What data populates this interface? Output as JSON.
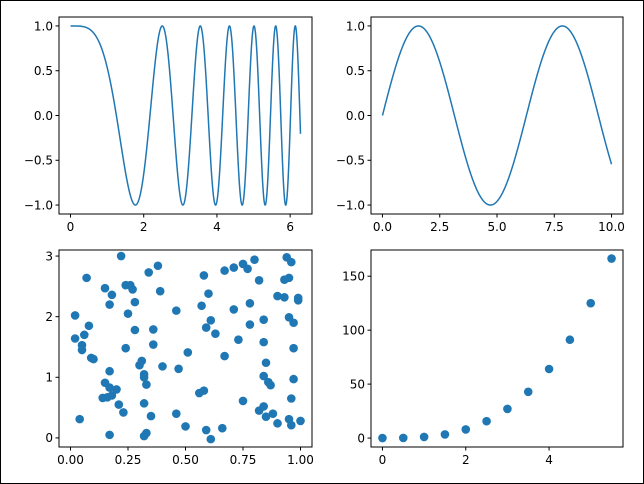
{
  "chart_data": [
    {
      "type": "line",
      "function": "cos(x^2)",
      "x_range": [
        0,
        6.283
      ],
      "xlim": [
        -0.314,
        6.597
      ],
      "ylim": [
        -1.1,
        1.1
      ],
      "xticks": [
        0,
        2,
        4,
        6
      ],
      "xtick_labels": [
        "0",
        "2",
        "4",
        "6"
      ],
      "yticks": [
        -1.0,
        -0.5,
        0.0,
        0.5,
        1.0
      ],
      "ytick_labels": [
        "−1.0",
        "−0.5",
        "0.0",
        "0.5",
        "1.0"
      ],
      "color": "#1f77b4",
      "title": "",
      "xlabel": "",
      "ylabel": ""
    },
    {
      "type": "line",
      "function": "sin(x)",
      "x_range": [
        0,
        10
      ],
      "xlim": [
        -0.5,
        10.5
      ],
      "ylim": [
        -1.1,
        1.1
      ],
      "xticks": [
        0,
        2.5,
        5,
        7.5,
        10
      ],
      "xtick_labels": [
        "0.0",
        "2.5",
        "5.0",
        "7.5",
        "10.0"
      ],
      "yticks": [
        -1.0,
        -0.5,
        0.0,
        0.5,
        1.0
      ],
      "ytick_labels": [
        "−1.0",
        "−0.5",
        "0.0",
        "0.5",
        "1.0"
      ],
      "color": "#1f77b4",
      "title": "",
      "xlabel": "",
      "ylabel": ""
    },
    {
      "type": "scatter",
      "xlim": [
        -0.05,
        1.05
      ],
      "ylim": [
        -0.15,
        3.1
      ],
      "xticks": [
        0,
        0.25,
        0.5,
        0.75,
        1.0
      ],
      "xtick_labels": [
        "0.00",
        "0.25",
        "0.50",
        "0.75",
        "1.00"
      ],
      "yticks": [
        0,
        1,
        2,
        3
      ],
      "ytick_labels": [
        "0",
        "1",
        "2",
        "3"
      ],
      "color": "#1f77b4",
      "points": [
        [
          0.02,
          2.02
        ],
        [
          0.02,
          1.64
        ],
        [
          0.05,
          1.53
        ],
        [
          0.05,
          1.45
        ],
        [
          0.08,
          1.85
        ],
        [
          0.07,
          2.64
        ],
        [
          0.06,
          1.7
        ],
        [
          0.09,
          1.32
        ],
        [
          0.1,
          1.3
        ],
        [
          0.04,
          0.31
        ],
        [
          0.15,
          2.47
        ],
        [
          0.17,
          2.2
        ],
        [
          0.18,
          2.36
        ],
        [
          0.15,
          0.91
        ],
        [
          0.17,
          0.83
        ],
        [
          0.17,
          1.1
        ],
        [
          0.16,
          0.67
        ],
        [
          0.14,
          0.66
        ],
        [
          0.18,
          0.7
        ],
        [
          0.2,
          0.8
        ],
        [
          0.21,
          0.55
        ],
        [
          0.23,
          0.42
        ],
        [
          0.17,
          0.05
        ],
        [
          0.22,
          3.0
        ],
        [
          0.26,
          2.52
        ],
        [
          0.24,
          2.52
        ],
        [
          0.27,
          2.45
        ],
        [
          0.28,
          2.24
        ],
        [
          0.25,
          2.05
        ],
        [
          0.24,
          1.48
        ],
        [
          0.28,
          1.78
        ],
        [
          0.31,
          1.27
        ],
        [
          0.3,
          1.2
        ],
        [
          0.32,
          1.05
        ],
        [
          0.32,
          1.0
        ],
        [
          0.33,
          0.88
        ],
        [
          0.32,
          0.57
        ],
        [
          0.35,
          0.36
        ],
        [
          0.33,
          0.08
        ],
        [
          0.32,
          0.03
        ],
        [
          0.34,
          2.73
        ],
        [
          0.38,
          2.84
        ],
        [
          0.39,
          2.42
        ],
        [
          0.36,
          1.79
        ],
        [
          0.36,
          1.54
        ],
        [
          0.4,
          1.18
        ],
        [
          0.46,
          2.1
        ],
        [
          0.47,
          1.14
        ],
        [
          0.46,
          0.4
        ],
        [
          0.5,
          0.19
        ],
        [
          0.51,
          1.41
        ],
        [
          0.58,
          2.68
        ],
        [
          0.6,
          2.38
        ],
        [
          0.57,
          2.18
        ],
        [
          0.59,
          1.82
        ],
        [
          0.61,
          1.94
        ],
        [
          0.63,
          1.72
        ],
        [
          0.67,
          1.35
        ],
        [
          0.58,
          0.78
        ],
        [
          0.56,
          0.74
        ],
        [
          0.59,
          0.13
        ],
        [
          0.61,
          -0.02
        ],
        [
          0.66,
          0.16
        ],
        [
          0.67,
          2.76
        ],
        [
          0.71,
          2.81
        ],
        [
          0.71,
          2.12
        ],
        [
          0.73,
          1.62
        ],
        [
          0.75,
          2.87
        ],
        [
          0.77,
          2.79
        ],
        [
          0.78,
          2.22
        ],
        [
          0.8,
          2.94
        ],
        [
          0.82,
          2.6
        ],
        [
          0.78,
          1.87
        ],
        [
          0.84,
          1.95
        ],
        [
          0.84,
          1.58
        ],
        [
          0.85,
          1.24
        ],
        [
          0.84,
          1.02
        ],
        [
          0.86,
          0.92
        ],
        [
          0.87,
          0.87
        ],
        [
          0.75,
          0.61
        ],
        [
          0.82,
          0.45
        ],
        [
          0.84,
          0.52
        ],
        [
          0.85,
          0.35
        ],
        [
          0.88,
          0.4
        ],
        [
          0.9,
          0.24
        ],
        [
          0.9,
          2.34
        ],
        [
          0.94,
          2.98
        ],
        [
          0.96,
          2.9
        ],
        [
          0.95,
          2.64
        ],
        [
          0.93,
          2.61
        ],
        [
          0.93,
          2.32
        ],
        [
          0.95,
          1.99
        ],
        [
          0.97,
          1.9
        ],
        [
          0.99,
          2.27
        ],
        [
          0.99,
          2.31
        ],
        [
          0.97,
          1.48
        ],
        [
          0.97,
          0.97
        ],
        [
          0.96,
          0.65
        ],
        [
          0.95,
          0.31
        ],
        [
          0.96,
          0.21
        ],
        [
          1.0,
          0.28
        ]
      ],
      "title": "",
      "xlabel": "",
      "ylabel": ""
    },
    {
      "type": "scatter",
      "xlim": [
        -0.275,
        5.775
      ],
      "ylim": [
        -8.3,
        174.3
      ],
      "xticks": [
        0,
        2,
        4
      ],
      "xtick_labels": [
        "0",
        "2",
        "4"
      ],
      "yticks": [
        0,
        50,
        100,
        150
      ],
      "ytick_labels": [
        "0",
        "50",
        "100",
        "150"
      ],
      "color": "#1f77b4",
      "x": [
        0,
        0.5,
        1.0,
        1.5,
        2.0,
        2.5,
        3.0,
        3.5,
        4.0,
        4.5,
        5.0,
        5.5
      ],
      "y": [
        0,
        0.13,
        1.0,
        3.38,
        8.0,
        15.63,
        27.0,
        42.88,
        64.0,
        91.13,
        125.0,
        166.38
      ],
      "title": "",
      "xlabel": "",
      "ylabel": ""
    }
  ]
}
